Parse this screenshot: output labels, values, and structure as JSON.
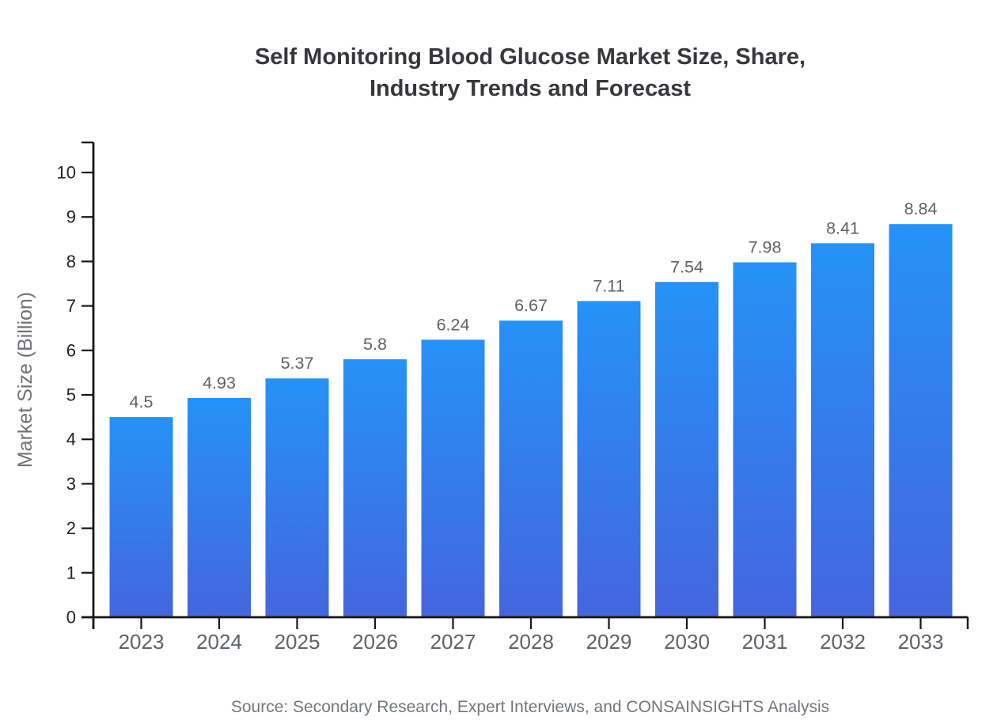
{
  "page": {
    "background": "#ffffff"
  },
  "chart_data": {
    "type": "bar",
    "title": "Self Monitoring Blood Glucose Market Size, Share, Industry Trends and Forecast",
    "title_lines": [
      "Self Monitoring Blood Glucose Market Size, Share,",
      "Industry Trends and Forecast"
    ],
    "categories": [
      "2023",
      "2024",
      "2025",
      "2026",
      "2027",
      "2028",
      "2029",
      "2030",
      "2031",
      "2032",
      "2033"
    ],
    "values": [
      4.5,
      4.93,
      5.37,
      5.8,
      6.24,
      6.67,
      7.11,
      7.54,
      7.98,
      8.41,
      8.84
    ],
    "value_labels": [
      "4.5",
      "4.93",
      "5.37",
      "5.8",
      "6.24",
      "6.67",
      "7.11",
      "7.54",
      "7.98",
      "8.41",
      "8.84"
    ],
    "xlabel": "",
    "ylabel": "Market Size (Billion)",
    "ylim": [
      0,
      10
    ],
    "ytick_values": [
      0,
      1,
      2,
      3,
      4,
      5,
      6,
      7,
      8,
      9,
      10
    ],
    "grid": false,
    "legend_position": "none",
    "bar_color_top": "#2592f8",
    "bar_color_bottom": "#4466de"
  },
  "footer": {
    "source_note": "Source: Secondary Research, Expert Interviews, and CONSAINSIGHTS Analysis"
  },
  "colors": {
    "title": "#37383b",
    "axis": "#161616",
    "ytick_label": "#202124",
    "xtick_label": "#5f6266",
    "value_label": "#5f6266",
    "axis_title": "#6f7276",
    "source": "#737679"
  }
}
